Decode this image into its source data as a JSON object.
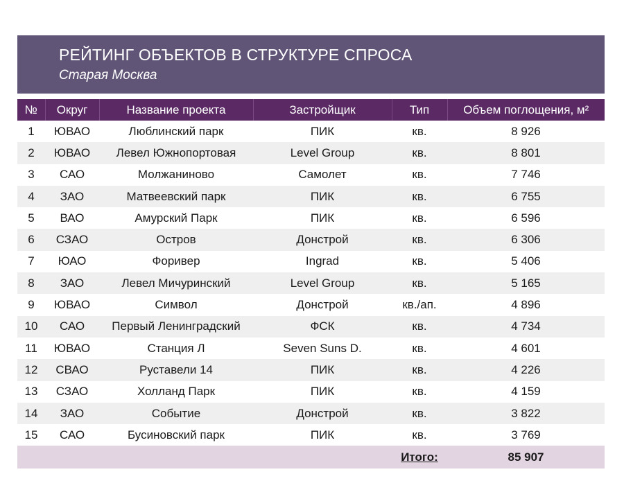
{
  "header": {
    "title": "РЕЙТИНГ ОБЪЕКТОВ В СТРУКТУРЕ СПРОСА",
    "subtitle": "Старая Москва"
  },
  "table": {
    "columns": [
      "№",
      "Округ",
      "Название проекта",
      "Застройщик",
      "Тип",
      "Объем поглощения, м²"
    ],
    "rows": [
      [
        "1",
        "ЮВАО",
        "Люблинский парк",
        "ПИК",
        "кв.",
        "8 926"
      ],
      [
        "2",
        "ЮВАО",
        "Левел Южнопортовая",
        "Level Group",
        "кв.",
        "8 801"
      ],
      [
        "3",
        "САО",
        "Молжаниново",
        "Самолет",
        "кв.",
        "7 746"
      ],
      [
        "4",
        "ЗАО",
        "Матвеевский парк",
        "ПИК",
        "кв.",
        "6 755"
      ],
      [
        "5",
        "ВАО",
        "Амурский Парк",
        "ПИК",
        "кв.",
        "6 596"
      ],
      [
        "6",
        "СЗАО",
        "Остров",
        "Донстрой",
        "кв.",
        "6 306"
      ],
      [
        "7",
        "ЮАО",
        "Форивер",
        "Ingrad",
        "кв.",
        "5 406"
      ],
      [
        "8",
        "ЗАО",
        "Левел Мичуринский",
        "Level Group",
        "кв.",
        "5 165"
      ],
      [
        "9",
        "ЮВАО",
        "Символ",
        "Донстрой",
        "кв./ап.",
        "4 896"
      ],
      [
        "10",
        "САО",
        "Первый Ленинградский",
        "ФСК",
        "кв.",
        "4 734"
      ],
      [
        "11",
        "ЮВАО",
        "Станция Л",
        "Seven Suns D.",
        "кв.",
        "4 601"
      ],
      [
        "12",
        "СВАО",
        "Руставели 14",
        "ПИК",
        "кв.",
        "4 226"
      ],
      [
        "13",
        "СЗАО",
        "Холланд Парк",
        "ПИК",
        "кв.",
        "4 159"
      ],
      [
        "14",
        "ЗАО",
        "Событие",
        "Донстрой",
        "кв.",
        "3 822"
      ],
      [
        "15",
        "САО",
        "Бусиновский парк",
        "ПИК",
        "кв.",
        "3 769"
      ]
    ],
    "total_label": "Итого:",
    "total_value": "85 907"
  },
  "colors": {
    "banner": "#605576",
    "header_row": "#5b2a65",
    "stripe": "#efeff0",
    "total_row": "#e3d4e2"
  }
}
